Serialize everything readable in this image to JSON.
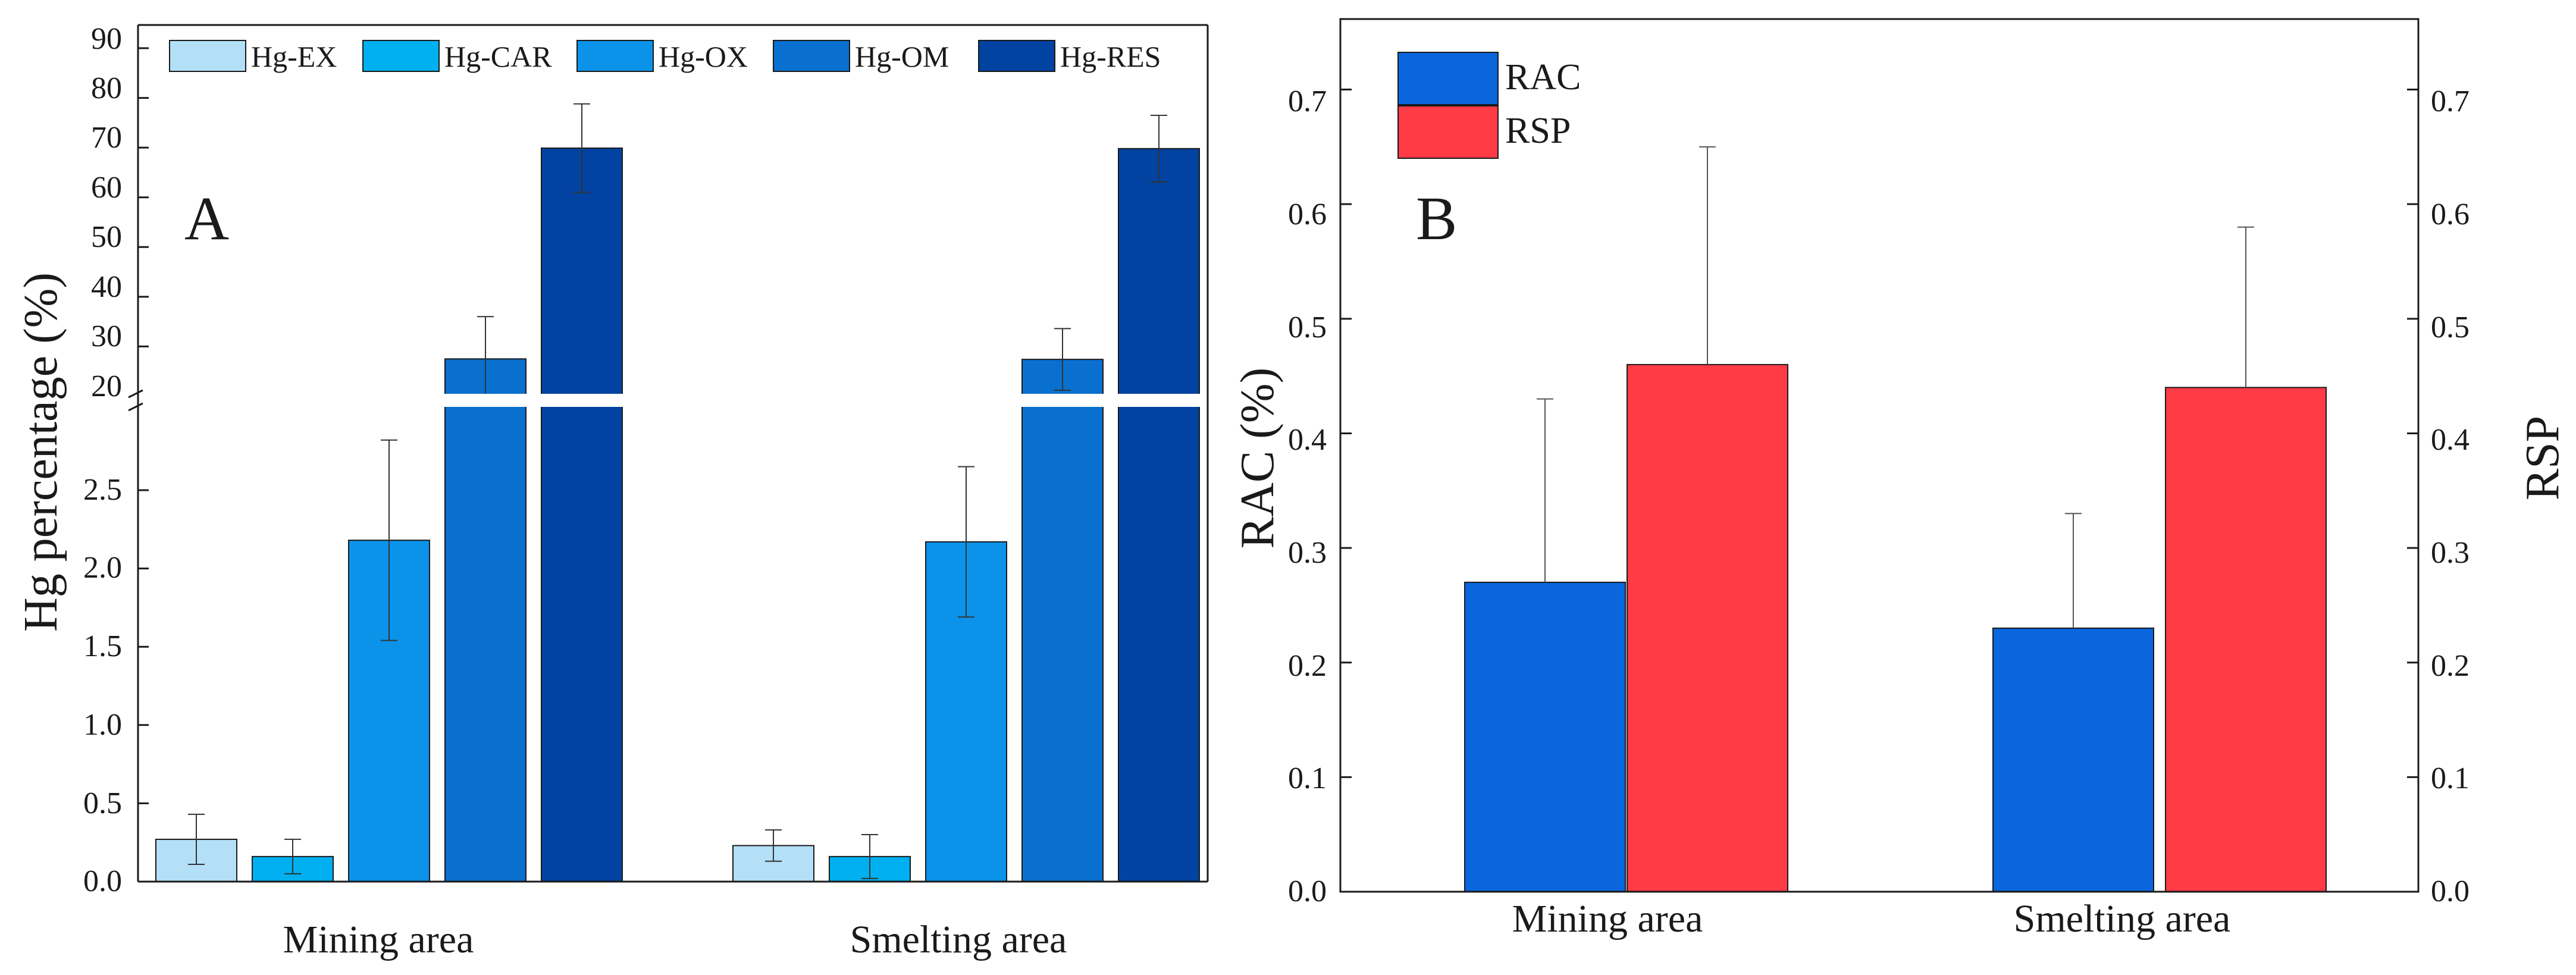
{
  "chart_data": [
    {
      "type": "bar",
      "panel": "A",
      "categories": [
        "Mining area",
        "Smelting area"
      ],
      "ylabel": "Hg percentage (%)",
      "y_axis_break": [
        2.9,
        18
      ],
      "ylim_lower": [
        0,
        2.9
      ],
      "ylim_upper": [
        18,
        90
      ],
      "yticks_lower": [
        "0.0",
        "0.5",
        "1.0",
        "1.5",
        "2.0",
        "2.5"
      ],
      "yticks_upper": [
        "20",
        "30",
        "40",
        "50",
        "60",
        "70",
        "80",
        "90"
      ],
      "legend_position": "top",
      "series": [
        {
          "name": "Hg-EX",
          "color": "#b3e0f7",
          "values": [
            0.27,
            0.23
          ],
          "errors": [
            0.16,
            0.1
          ]
        },
        {
          "name": "Hg-CAR",
          "color": "#00b0f0",
          "values": [
            0.16,
            0.16
          ],
          "errors": [
            0.11,
            0.14
          ]
        },
        {
          "name": "Hg-OX",
          "color": "#0b93ea",
          "values": [
            2.18,
            2.17
          ],
          "errors": [
            0.64,
            0.48
          ]
        },
        {
          "name": "Hg-OM",
          "color": "#0970cf",
          "values": [
            27.5,
            27.4
          ],
          "errors": [
            8.5,
            6.2
          ]
        },
        {
          "name": "Hg-RES",
          "color": "#0243a1",
          "values": [
            69.9,
            69.8
          ],
          "errors": [
            8.9,
            6.7
          ]
        }
      ]
    },
    {
      "type": "bar",
      "panel": "B",
      "categories": [
        "Mining area",
        "Smelting area"
      ],
      "ylabel": "RAC (%)",
      "ylabel_right": "RSP",
      "ylim": [
        0,
        0.75
      ],
      "yticks": [
        "0.0",
        "0.1",
        "0.2",
        "0.3",
        "0.4",
        "0.5",
        "0.6",
        "0.7"
      ],
      "legend_position": "top-left",
      "series": [
        {
          "name": "RAC",
          "color": "#0a66dd",
          "values": [
            0.27,
            0.23
          ],
          "errors": [
            0.16,
            0.1
          ]
        },
        {
          "name": "RSP",
          "color": "#ff3b45",
          "values": [
            0.46,
            0.44
          ],
          "errors": [
            0.19,
            0.14
          ]
        }
      ]
    }
  ]
}
